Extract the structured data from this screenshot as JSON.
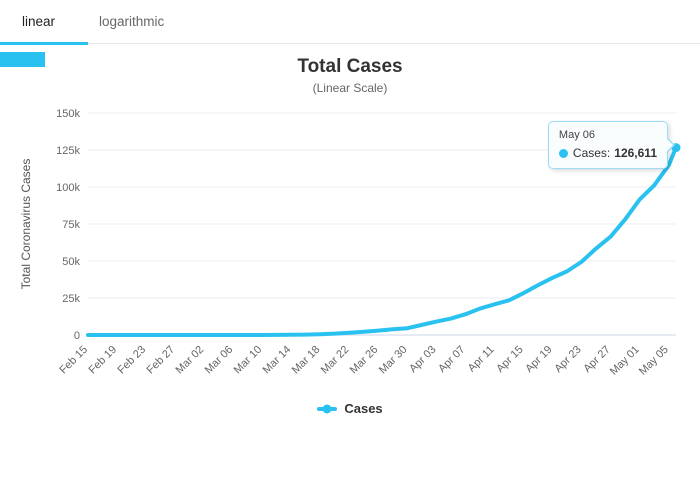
{
  "tabs": [
    {
      "label": "linear",
      "active": true
    },
    {
      "label": "logarithmic",
      "active": false
    }
  ],
  "colors": {
    "accent": "#29c2f0",
    "grid": "#ececec",
    "axis_line": "#ccd6eb",
    "tick_text": "#666666",
    "title": "#333333",
    "subtitle": "#666666"
  },
  "chart_data": {
    "type": "line",
    "title": "Total Cases",
    "subtitle": "(Linear Scale)",
    "ylabel": "Total Coronavirus Cases",
    "xlabel": "",
    "ylim": [
      0,
      150000
    ],
    "grid": true,
    "legend_position": "bottom",
    "y_ticks": [
      {
        "label": "0",
        "value": 0
      },
      {
        "label": "25k",
        "value": 25000
      },
      {
        "label": "50k",
        "value": 50000
      },
      {
        "label": "75k",
        "value": 75000
      },
      {
        "label": "100k",
        "value": 100000
      },
      {
        "label": "125k",
        "value": 125000
      },
      {
        "label": "150k",
        "value": 150000
      }
    ],
    "x_ticks": [
      {
        "label": "Feb 15",
        "day": 0
      },
      {
        "label": "Feb 19",
        "day": 4
      },
      {
        "label": "Feb 23",
        "day": 8
      },
      {
        "label": "Feb 27",
        "day": 12
      },
      {
        "label": "Mar 02",
        "day": 16
      },
      {
        "label": "Mar 06",
        "day": 20
      },
      {
        "label": "Mar 10",
        "day": 24
      },
      {
        "label": "Mar 14",
        "day": 28
      },
      {
        "label": "Mar 18",
        "day": 32
      },
      {
        "label": "Mar 22",
        "day": 36
      },
      {
        "label": "Mar 26",
        "day": 40
      },
      {
        "label": "Mar 30",
        "day": 44
      },
      {
        "label": "Apr 03",
        "day": 48
      },
      {
        "label": "Apr 07",
        "day": 52
      },
      {
        "label": "Apr 11",
        "day": 56
      },
      {
        "label": "Apr 15",
        "day": 60
      },
      {
        "label": "Apr 19",
        "day": 64
      },
      {
        "label": "Apr 23",
        "day": 68
      },
      {
        "label": "Apr 27",
        "day": 72
      },
      {
        "label": "May 01",
        "day": 76
      },
      {
        "label": "May 05",
        "day": 80
      }
    ],
    "x_max_day": 81,
    "series": [
      {
        "name": "Cases",
        "color": "#29c2f0",
        "x_days": [
          0,
          2,
          4,
          6,
          8,
          10,
          12,
          14,
          16,
          18,
          20,
          22,
          24,
          26,
          28,
          30,
          32,
          34,
          36,
          38,
          40,
          42,
          44,
          46,
          48,
          50,
          52,
          54,
          56,
          58,
          60,
          62,
          64,
          66,
          68,
          70,
          72,
          74,
          76,
          78,
          80,
          81
        ],
        "values": [
          0,
          0,
          0,
          0,
          0,
          0,
          1,
          2,
          2,
          4,
          13,
          20,
          34,
          77,
          151,
          234,
          529,
          904,
          1546,
          2201,
          2985,
          3904,
          4579,
          6836,
          9056,
          11130,
          14034,
          17857,
          20727,
          23430,
          28320,
          33682,
          38654,
          43079,
          49492,
          58509,
          66501,
          78162,
          91589,
          101147,
          114715,
          126611
        ]
      }
    ],
    "tooltip": {
      "date": "May 06",
      "label": "Cases:",
      "value": "126,611"
    },
    "legend": [
      {
        "label": "Cases"
      }
    ]
  }
}
